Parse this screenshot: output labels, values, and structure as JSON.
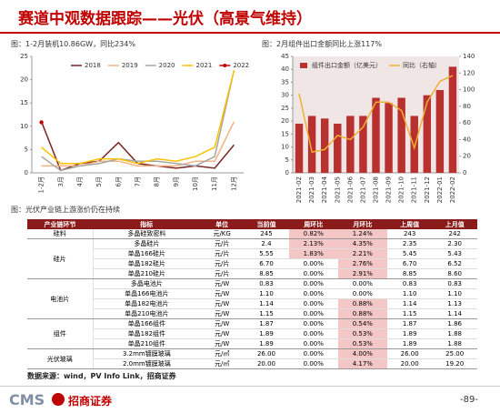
{
  "header": {
    "title": "赛道中观数据跟踪——光伏（高景气维持）"
  },
  "chart_data": [
    {
      "type": "line",
      "title": "图：1-2月装机10.86GW，同比234%",
      "categories": [
        "1-2月",
        "3月",
        "4月",
        "5月",
        "6月",
        "7月",
        "8月",
        "9月",
        "10月",
        "11月",
        "12月"
      ],
      "ylim": [
        0,
        25
      ],
      "yticks": [
        0,
        5,
        10,
        15,
        20,
        25
      ],
      "legend": "top",
      "series": [
        {
          "name": "2018",
          "color": "#7b2626",
          "values": [
            11,
            0.5,
            2,
            2.5,
            6.5,
            2,
            1.5,
            1,
            1.5,
            1,
            6
          ]
        },
        {
          "name": "2019",
          "color": "#f4b183",
          "values": [
            1.5,
            1.5,
            1.5,
            2.5,
            2.5,
            1.5,
            1.5,
            1.5,
            2.5,
            2.5,
            11
          ]
        },
        {
          "name": "2020",
          "color": "#a6a6a6",
          "values": [
            3.5,
            0.5,
            1.5,
            2,
            3,
            2.5,
            2.5,
            2,
            1.5,
            3.5,
            22
          ]
        },
        {
          "name": "2021",
          "color": "#ffc000",
          "values": [
            5.5,
            2,
            2,
            3,
            3,
            2,
            3,
            2.5,
            3.5,
            5.5,
            22
          ]
        },
        {
          "name": "2022",
          "color": "#c00000",
          "marker": true,
          "values": [
            10.86,
            null,
            null,
            null,
            null,
            null,
            null,
            null,
            null,
            null,
            null
          ]
        }
      ]
    },
    {
      "type": "bar_line",
      "title": "图：2月组件出口金额同比上涨117%",
      "categories": [
        "2021-02",
        "2021-03",
        "2021-04",
        "2021-05",
        "2021-06",
        "2021-07",
        "2021-08",
        "2021-09",
        "2021-10",
        "2021-11",
        "2021-12",
        "2022-01",
        "2022-02"
      ],
      "ylim": [
        0,
        45
      ],
      "yticks": [
        0,
        5,
        10,
        15,
        20,
        25,
        30,
        35,
        40,
        45
      ],
      "y2lim": [
        0,
        140
      ],
      "y2ticks": [
        0,
        20,
        40,
        60,
        80,
        100,
        120,
        140
      ],
      "legend": "top",
      "series": [
        {
          "name": "组件出口金额（亿美元）",
          "type": "bar",
          "color": "#b8312f",
          "values": [
            19,
            22,
            21,
            19,
            22,
            22,
            29,
            27,
            29,
            22,
            30,
            32,
            41
          ]
        },
        {
          "name": "同比（右轴）",
          "type": "line",
          "axis": "y2",
          "color": "#f0b030",
          "values": [
            95,
            25,
            28,
            45,
            40,
            55,
            85,
            85,
            75,
            30,
            85,
            110,
            117
          ]
        }
      ]
    }
  ],
  "table": {
    "caption": "图：光伏产业链上游涨价仍在持续",
    "columns": [
      "产业链环节",
      "指标",
      "单位",
      "当前值",
      "周环比",
      "月环比",
      "上周值",
      "上月值"
    ],
    "groups": [
      {
        "name": "硅料",
        "rows": [
          [
            "多晶硅致密料",
            "元/KG",
            "245",
            "0.82%",
            "1.24%",
            "243",
            "242"
          ]
        ]
      },
      {
        "name": "硅片",
        "rows": [
          [
            "多晶硅片",
            "元/片",
            "2.4",
            "2.13%",
            "4.35%",
            "2.35",
            "2.30"
          ],
          [
            "单晶166硅片",
            "元/片",
            "5.55",
            "1.83%",
            "2.21%",
            "5.45",
            "5.43"
          ],
          [
            "单晶182硅片",
            "元/片",
            "6.70",
            "0.00%",
            "2.76%",
            "6.70",
            "6.52"
          ],
          [
            "单晶210硅片",
            "元/片",
            "8.85",
            "0.00%",
            "2.91%",
            "8.85",
            "8.60"
          ]
        ]
      },
      {
        "name": "电池片",
        "rows": [
          [
            "多晶电池片",
            "元/W",
            "0.83",
            "0.00%",
            "0.00%",
            "0.83",
            "0.83"
          ],
          [
            "单晶166电池片",
            "元/W",
            "1.10",
            "0.00%",
            "0.00%",
            "1.10",
            "1.10"
          ],
          [
            "单晶182电池片",
            "元/W",
            "1.14",
            "0.00%",
            "0.88%",
            "1.14",
            "1.13"
          ],
          [
            "单晶210电池片",
            "元/W",
            "1.15",
            "0.00%",
            "0.88%",
            "1.15",
            "1.14"
          ]
        ]
      },
      {
        "name": "组件",
        "rows": [
          [
            "单晶166组件",
            "元/W",
            "1.87",
            "0.00%",
            "0.54%",
            "1.87",
            "1.86"
          ],
          [
            "单晶182组件",
            "元/W",
            "1.89",
            "0.00%",
            "0.53%",
            "1.89",
            "1.88"
          ],
          [
            "单晶210组件",
            "元/W",
            "1.89",
            "0.00%",
            "0.53%",
            "1.89",
            "1.88"
          ]
        ]
      },
      {
        "name": "光伏玻璃",
        "rows": [
          [
            "3.2mm镀膜玻璃",
            "元/㎡",
            "26.00",
            "0.00%",
            "4.00%",
            "26.00",
            "25.00"
          ],
          [
            "2.0mm镀膜玻璃",
            "元/㎡",
            "20.00",
            "0.00%",
            "4.17%",
            "20.00",
            "19.20"
          ]
        ]
      }
    ],
    "source": "数据来源：wind，PV Info Link，招商证券"
  },
  "footer": {
    "logo": "CMS",
    "brand": "招商证券",
    "page": "-89-"
  }
}
